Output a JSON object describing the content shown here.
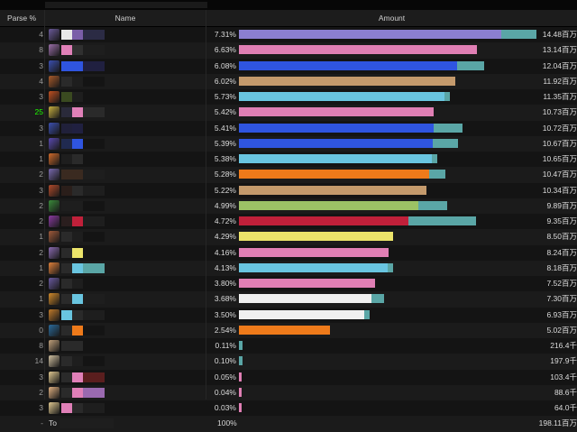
{
  "header": {
    "parse": "Parse %",
    "name": "Name",
    "amount": "Amount"
  },
  "rows": [
    {
      "parse": "4",
      "pct": "7.31%",
      "amount": "14.48百万",
      "value": 14.48,
      "main": "#8b7fd0",
      "ext": "#5aa6a6",
      "extv": 1.9,
      "icon": "#6b5a9a",
      "blur": [
        "#e8e8e8",
        "#7a5ea8",
        "#2b2b44"
      ]
    },
    {
      "parse": "8",
      "pct": "6.63%",
      "amount": "13.14百万",
      "value": 13.14,
      "main": "#e07fb4",
      "ext": null,
      "extv": 0,
      "icon": "#9a6ea8",
      "blur": [
        "#e080b8",
        "#303030",
        "#1e1e1e"
      ]
    },
    {
      "parse": "3",
      "pct": "6.08%",
      "amount": "12.04百万",
      "value": 12.04,
      "main": "#2f55e0",
      "ext": "#5aa6a6",
      "extv": 1.5,
      "icon": "#3b4fb0",
      "blur": [
        "#2f55e0",
        "#2f55e0",
        "#202040"
      ]
    },
    {
      "parse": "4",
      "pct": "6.02%",
      "amount": "11.92百万",
      "value": 11.92,
      "main": "#c49a6c",
      "ext": null,
      "extv": 0,
      "icon": "#a85a2a",
      "blur": [
        "#2a2a2a",
        "#1e1e1e",
        "#141414"
      ]
    },
    {
      "parse": "3",
      "pct": "5.73%",
      "amount": "11.35百万",
      "value": 11.35,
      "main": "#69c5e0",
      "ext": "#5aa6a6",
      "extv": 0.3,
      "icon": "#c05020",
      "blur": [
        "#3a4a20",
        "#1e1e1e",
        "#141414"
      ]
    },
    {
      "parse": "25",
      "pct": "5.42%",
      "amount": "10.73百万",
      "value": 10.73,
      "main": "#e07fb4",
      "ext": null,
      "extv": 0,
      "icon": "#c8b040",
      "blur": [
        "#2a2a3a",
        "#e080b8",
        "#2a2a2a"
      ],
      "green": true
    },
    {
      "parse": "3",
      "pct": "5.41%",
      "amount": "10.72百万",
      "value": 10.72,
      "main": "#2f55e0",
      "ext": "#5aa6a6",
      "extv": 1.6,
      "icon": "#3b4fb0",
      "blur": [
        "#20203a",
        "#202040",
        "#141414"
      ]
    },
    {
      "parse": "1",
      "pct": "5.39%",
      "amount": "10.67百万",
      "value": 10.67,
      "main": "#2f55e0",
      "ext": "#5aa6a6",
      "extv": 1.4,
      "icon": "#5a4ab0",
      "blur": [
        "#202a50",
        "#2f55e0",
        "#141414"
      ]
    },
    {
      "parse": "1",
      "pct": "5.38%",
      "amount": "10.65百万",
      "value": 10.65,
      "main": "#69c5e0",
      "ext": "#5aa6a6",
      "extv": 0.3,
      "icon": "#d06a2a",
      "blur": [
        "#1e1e1e",
        "#2a2a2a",
        "#141414"
      ]
    },
    {
      "parse": "2",
      "pct": "5.28%",
      "amount": "10.47百万",
      "value": 10.47,
      "main": "#ee7a1a",
      "ext": "#5aa6a6",
      "extv": 0.9,
      "icon": "#7a6ab0",
      "blur": [
        "#3a2a20",
        "#3a2a20",
        "#1e1e1e"
      ]
    },
    {
      "parse": "3",
      "pct": "5.22%",
      "amount": "10.34百万",
      "value": 10.34,
      "main": "#c49a6c",
      "ext": null,
      "extv": 0,
      "icon": "#b04a2a",
      "blur": [
        "#2a1e1a",
        "#2a2a2a",
        "#1e1e1e"
      ]
    },
    {
      "parse": "2",
      "pct": "4.99%",
      "amount": "9.89百万",
      "value": 9.89,
      "main": "#9cc265",
      "ext": "#5aa6a6",
      "extv": 1.6,
      "icon": "#3a8a3a",
      "blur": [
        "#1e1e1e",
        "#1e1e1e",
        "#141414"
      ]
    },
    {
      "parse": "2",
      "pct": "4.72%",
      "amount": "9.35百万",
      "value": 9.35,
      "main": "#c0203a",
      "ext": "#5aa6a6",
      "extv": 3.7,
      "icon": "#8a3aa0",
      "blur": [
        "#2a1e1e",
        "#c0203a",
        "#1e1e1e"
      ]
    },
    {
      "parse": "1",
      "pct": "4.29%",
      "amount": "8.50百万",
      "value": 8.5,
      "main": "#ece46a",
      "ext": null,
      "extv": 0,
      "icon": "#a05a3a",
      "blur": [
        "#2a2a2a",
        "#1e1e1e",
        "#141414"
      ]
    },
    {
      "parse": "2",
      "pct": "4.16%",
      "amount": "8.24百万",
      "value": 8.24,
      "main": "#e07fb4",
      "ext": null,
      "extv": 0,
      "icon": "#8a6ab0",
      "blur": [
        "#2a2a2a",
        "#ece46a",
        "#141414"
      ]
    },
    {
      "parse": "1",
      "pct": "4.13%",
      "amount": "8.18百万",
      "value": 8.18,
      "main": "#69c5e0",
      "ext": "#5aa6a6",
      "extv": 0.3,
      "icon": "#e0803a",
      "blur": [
        "#2a2a2a",
        "#69c5e0",
        "#5aa6a6"
      ]
    },
    {
      "parse": "2",
      "pct": "3.80%",
      "amount": "7.52百万",
      "value": 7.52,
      "main": "#e07fb4",
      "ext": null,
      "extv": 0,
      "icon": "#6a5aa0",
      "blur": [
        "#2a2a2a",
        "#1e1e1e",
        "#141414"
      ]
    },
    {
      "parse": "1",
      "pct": "3.68%",
      "amount": "7.30百万",
      "value": 7.3,
      "main": "#f0f0f0",
      "ext": "#5aa6a6",
      "extv": 0.7,
      "icon": "#d08a2a",
      "blur": [
        "#2a2a2a",
        "#69c5e0",
        "#1e1e1e"
      ]
    },
    {
      "parse": "3",
      "pct": "3.50%",
      "amount": "6.93百万",
      "value": 6.93,
      "main": "#f0f0f0",
      "ext": "#5aa6a6",
      "extv": 0.3,
      "icon": "#c07a2a",
      "blur": [
        "#69c5e0",
        "#2a2a2a",
        "#1e1e1e"
      ]
    },
    {
      "parse": "0",
      "pct": "2.54%",
      "amount": "5.02百万",
      "value": 5.02,
      "main": "#ee7a1a",
      "ext": null,
      "extv": 0,
      "icon": "#2a6a9a",
      "blur": [
        "#2a2a2a",
        "#ee7a1a",
        "#141414"
      ]
    },
    {
      "parse": "8",
      "pct": "0.11%",
      "amount": "216.4千",
      "value": 0.216,
      "main": "#5aa6a6",
      "ext": null,
      "extv": 0,
      "icon": "#c0a07a",
      "blur": [
        "#2a2a2a",
        "#2a2a2a",
        "#141414"
      ]
    },
    {
      "parse": "14",
      "pct": "0.10%",
      "amount": "197.9千",
      "value": 0.198,
      "main": "#5aa6a6",
      "ext": null,
      "extv": 0,
      "icon": "#d0c0a0",
      "blur": [
        "#2a2a2a",
        "#1e1e1e",
        "#141414"
      ]
    },
    {
      "parse": "3",
      "pct": "0.05%",
      "amount": "103.4千",
      "value": 0.103,
      "main": "#e07fb4",
      "ext": null,
      "extv": 0,
      "icon": "#e0c890",
      "blur": [
        "#2a2a2a",
        "#e080b8",
        "#5a1e1e"
      ]
    },
    {
      "parse": "2",
      "pct": "0.04%",
      "amount": "88.6千",
      "value": 0.089,
      "main": "#e07fb4",
      "ext": null,
      "extv": 0,
      "icon": "#e0b080",
      "blur": [
        "#2a2a2a",
        "#e080b8",
        "#9a6ab0"
      ]
    },
    {
      "parse": "3",
      "pct": "0.03%",
      "amount": "64.0千",
      "value": 0.064,
      "main": "#e07fb4",
      "ext": null,
      "extv": 0,
      "icon": "#e0c890",
      "blur": [
        "#e080b8",
        "#2a2a2a",
        "#1e1e1e"
      ]
    }
  ],
  "total": {
    "parse": "-",
    "name": "To",
    "pct": "100%",
    "amount": "198.11百万"
  },
  "scale_max": 16.4
}
